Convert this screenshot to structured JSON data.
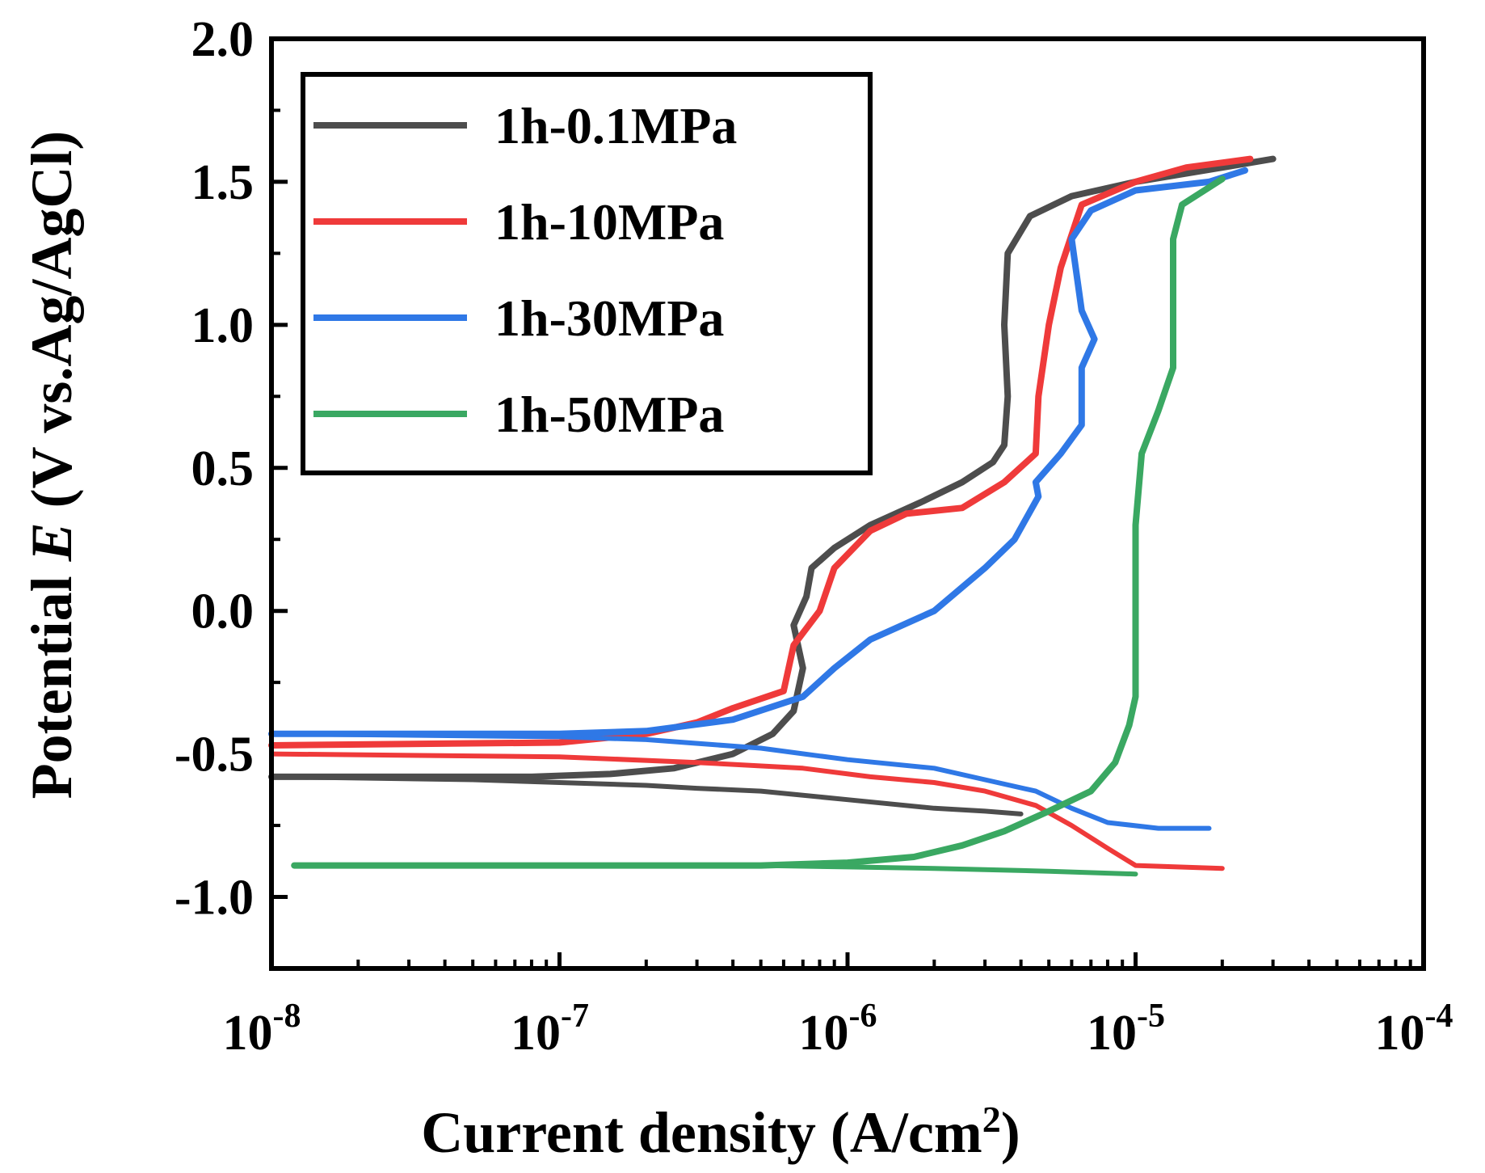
{
  "chart_data": {
    "type": "line",
    "title": "",
    "xlabel": "Current density (A/cm2)",
    "xlabel_main": "Current density (A/cm",
    "xlabel_sup": "2",
    "xlabel_close": ")",
    "ylabel_prefix": "Potential ",
    "ylabel_var": "E",
    "ylabel_suffix": " (V vs.Ag/AgCl)",
    "xscale": "log",
    "xlim_exp": [
      -8,
      -4
    ],
    "ylim": [
      -1.25,
      2.0
    ],
    "x_ticks": [
      {
        "base": "10",
        "exp": "-8",
        "value": 1e-08
      },
      {
        "base": "10",
        "exp": "-7",
        "value": 1e-07
      },
      {
        "base": "10",
        "exp": "-6",
        "value": 1e-06
      },
      {
        "base": "10",
        "exp": "-5",
        "value": 1e-05
      },
      {
        "base": "10",
        "exp": "-4",
        "value": 0.0001
      }
    ],
    "y_ticks": [
      {
        "label": "-1.0",
        "value": -1.0
      },
      {
        "label": "-0.5",
        "value": -0.5
      },
      {
        "label": "0.0",
        "value": 0.0
      },
      {
        "label": "0.5",
        "value": 0.5
      },
      {
        "label": "1.0",
        "value": 1.0
      },
      {
        "label": "1.5",
        "value": 1.5
      },
      {
        "label": "2.0",
        "value": 2.0
      }
    ],
    "legend_position": "top-left",
    "series": [
      {
        "name": "1h-0.1MPa",
        "color": "#4d4d4d",
        "cathodic": [
          [
            1e-08,
            -0.58
          ],
          [
            5e-08,
            -0.59
          ],
          [
            1e-07,
            -0.6
          ],
          [
            2e-07,
            -0.61
          ],
          [
            3e-07,
            -0.62
          ],
          [
            5e-07,
            -0.63
          ],
          [
            1e-06,
            -0.66
          ],
          [
            2e-06,
            -0.69
          ],
          [
            3e-06,
            -0.7
          ],
          [
            4e-06,
            -0.71
          ]
        ],
        "anodic": [
          [
            1e-08,
            -0.58
          ],
          [
            8e-08,
            -0.58
          ],
          [
            1.5e-07,
            -0.57
          ],
          [
            2.5e-07,
            -0.55
          ],
          [
            4e-07,
            -0.5
          ],
          [
            5.5e-07,
            -0.43
          ],
          [
            6.5e-07,
            -0.35
          ],
          [
            7e-07,
            -0.2
          ],
          [
            6.5e-07,
            -0.05
          ],
          [
            7.2e-07,
            0.05
          ],
          [
            7.5e-07,
            0.15
          ],
          [
            9e-07,
            0.22
          ],
          [
            1.2e-06,
            0.3
          ],
          [
            1.8e-06,
            0.38
          ],
          [
            2.5e-06,
            0.45
          ],
          [
            3.2e-06,
            0.52
          ],
          [
            3.5e-06,
            0.58
          ],
          [
            3.6e-06,
            0.75
          ],
          [
            3.5e-06,
            1.0
          ],
          [
            3.6e-06,
            1.25
          ],
          [
            4.3e-06,
            1.38
          ],
          [
            6e-06,
            1.45
          ],
          [
            1e-05,
            1.5
          ],
          [
            2e-05,
            1.55
          ],
          [
            3e-05,
            1.58
          ]
        ]
      },
      {
        "name": "1h-10MPa",
        "color": "#ef3a3a",
        "cathodic": [
          [
            1e-08,
            -0.5
          ],
          [
            1e-07,
            -0.51
          ],
          [
            3e-07,
            -0.53
          ],
          [
            7e-07,
            -0.55
          ],
          [
            1.2e-06,
            -0.58
          ],
          [
            2e-06,
            -0.6
          ],
          [
            3e-06,
            -0.63
          ],
          [
            4.5e-06,
            -0.68
          ],
          [
            6e-06,
            -0.75
          ],
          [
            8e-06,
            -0.83
          ],
          [
            1e-05,
            -0.89
          ],
          [
            2e-05,
            -0.9
          ]
        ],
        "anodic": [
          [
            1e-08,
            -0.47
          ],
          [
            1e-07,
            -0.46
          ],
          [
            2e-07,
            -0.43
          ],
          [
            3e-07,
            -0.39
          ],
          [
            4e-07,
            -0.34
          ],
          [
            6e-07,
            -0.28
          ],
          [
            6.5e-07,
            -0.12
          ],
          [
            8e-07,
            0.0
          ],
          [
            9e-07,
            0.15
          ],
          [
            1.2e-06,
            0.28
          ],
          [
            1.6e-06,
            0.34
          ],
          [
            2.5e-06,
            0.36
          ],
          [
            3.5e-06,
            0.45
          ],
          [
            4.5e-06,
            0.55
          ],
          [
            4.6e-06,
            0.75
          ],
          [
            5e-06,
            1.0
          ],
          [
            5.5e-06,
            1.2
          ],
          [
            6.5e-06,
            1.42
          ],
          [
            1e-05,
            1.5
          ],
          [
            1.5e-05,
            1.55
          ],
          [
            2.5e-05,
            1.58
          ]
        ]
      },
      {
        "name": "1h-30MPa",
        "color": "#2f78e6",
        "cathodic": [
          [
            1e-08,
            -0.43
          ],
          [
            1e-07,
            -0.44
          ],
          [
            2e-07,
            -0.45
          ],
          [
            5e-07,
            -0.48
          ],
          [
            1e-06,
            -0.52
          ],
          [
            2e-06,
            -0.55
          ],
          [
            3e-06,
            -0.59
          ],
          [
            4.5e-06,
            -0.63
          ],
          [
            6e-06,
            -0.69
          ],
          [
            8e-06,
            -0.74
          ],
          [
            1.2e-05,
            -0.76
          ],
          [
            1.8e-05,
            -0.76
          ]
        ],
        "anodic": [
          [
            1e-08,
            -0.43
          ],
          [
            1e-07,
            -0.43
          ],
          [
            2e-07,
            -0.42
          ],
          [
            4e-07,
            -0.38
          ],
          [
            7e-07,
            -0.3
          ],
          [
            9e-07,
            -0.2
          ],
          [
            1.2e-06,
            -0.1
          ],
          [
            2e-06,
            0.0
          ],
          [
            3e-06,
            0.15
          ],
          [
            3.8e-06,
            0.25
          ],
          [
            4.6e-06,
            0.4
          ],
          [
            4.5e-06,
            0.45
          ],
          [
            5.5e-06,
            0.55
          ],
          [
            6.5e-06,
            0.65
          ],
          [
            6.5e-06,
            0.85
          ],
          [
            7.2e-06,
            0.95
          ],
          [
            6.5e-06,
            1.05
          ],
          [
            6e-06,
            1.3
          ],
          [
            7e-06,
            1.4
          ],
          [
            1e-05,
            1.47
          ],
          [
            1.8e-05,
            1.5
          ],
          [
            2.4e-05,
            1.54
          ]
        ]
      },
      {
        "name": "1h-50MPa",
        "color": "#3aa862",
        "cathodic": [
          [
            1.2e-08,
            -0.89
          ],
          [
            1e-07,
            -0.89
          ],
          [
            5e-07,
            -0.89
          ],
          [
            1e-06,
            -0.895
          ],
          [
            2e-06,
            -0.9
          ],
          [
            5e-06,
            -0.91
          ],
          [
            1e-05,
            -0.92
          ]
        ],
        "anodic": [
          [
            1.2e-08,
            -0.89
          ],
          [
            1e-07,
            -0.89
          ],
          [
            5e-07,
            -0.89
          ],
          [
            1e-06,
            -0.88
          ],
          [
            1.7e-06,
            -0.86
          ],
          [
            2.5e-06,
            -0.82
          ],
          [
            3.5e-06,
            -0.77
          ],
          [
            5e-06,
            -0.7
          ],
          [
            7e-06,
            -0.63
          ],
          [
            8.5e-06,
            -0.53
          ],
          [
            9.5e-06,
            -0.4
          ],
          [
            1e-05,
            -0.3
          ],
          [
            1e-05,
            -0.1
          ],
          [
            1e-05,
            0.1
          ],
          [
            1e-05,
            0.3
          ],
          [
            1.05e-05,
            0.55
          ],
          [
            1.2e-05,
            0.7
          ],
          [
            1.35e-05,
            0.85
          ],
          [
            1.35e-05,
            1.1
          ],
          [
            1.35e-05,
            1.3
          ],
          [
            1.45e-05,
            1.42
          ],
          [
            2e-05,
            1.51
          ]
        ]
      }
    ]
  }
}
